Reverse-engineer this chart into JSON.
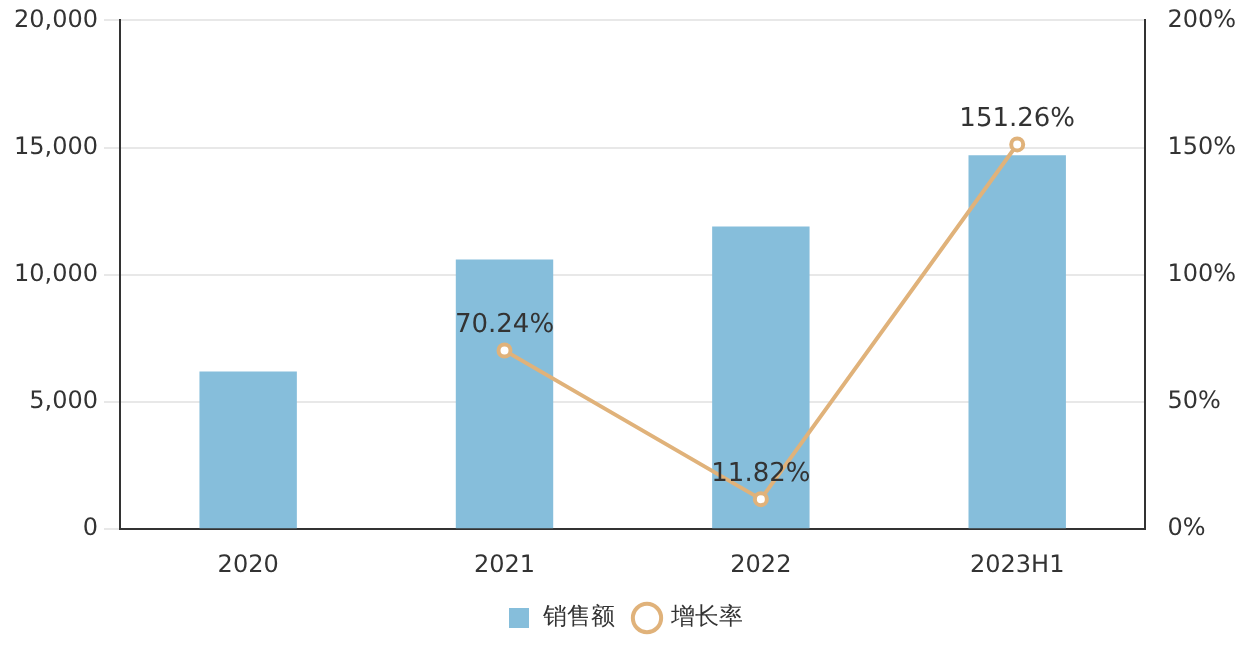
{
  "chart_data": {
    "type": "bar",
    "categories": [
      "2020",
      "2021",
      "2022",
      "2023H1"
    ],
    "series": [
      {
        "name": "销售额",
        "color": "#86bedb",
        "values": [
          6200,
          10600,
          11900,
          14700
        ]
      },
      {
        "name": "增长率",
        "type": "line",
        "axis": "y2",
        "color": "#e0b27a",
        "values": [
          null,
          70.24,
          11.82,
          151.26
        ],
        "value_labels": [
          null,
          "70.24%",
          "11.82%",
          "151.26%"
        ],
        "marker": "circle"
      }
    ],
    "ylim": [
      0,
      20000
    ],
    "yticks": [
      {
        "value": 0,
        "label": "0"
      },
      {
        "value": 5000,
        "label": "5,000"
      },
      {
        "value": 10000,
        "label": "10,000"
      },
      {
        "value": 15000,
        "label": "15,000"
      },
      {
        "value": 20000,
        "label": "20,000"
      }
    ],
    "y2lim": [
      0,
      200
    ],
    "y2ticks": [
      {
        "value": 0,
        "label": "0%"
      },
      {
        "value": 50,
        "label": "50%"
      },
      {
        "value": 100,
        "label": "100%"
      },
      {
        "value": 150,
        "label": "150%"
      },
      {
        "value": 200,
        "label": "200%"
      }
    ],
    "grid": "y",
    "legend": "bottom"
  }
}
